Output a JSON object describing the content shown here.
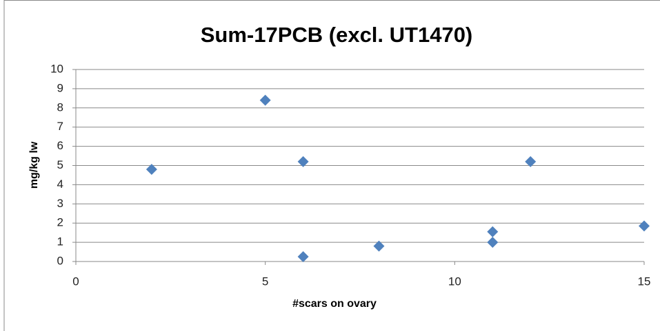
{
  "chart_data": {
    "type": "scatter",
    "title": "Sum-17PCB (excl. UT1470)",
    "xlabel": "#scars on ovary",
    "ylabel": "mg/kg lw",
    "x": [
      2,
      5,
      6,
      6,
      8,
      11,
      11,
      12,
      15
    ],
    "values": [
      4.8,
      8.4,
      5.2,
      0.25,
      0.8,
      1.55,
      1.0,
      5.2,
      1.85
    ],
    "color": "#4f81bd",
    "xlim": [
      0,
      15
    ],
    "xticks": [
      0,
      5,
      10,
      15
    ],
    "ylim": [
      0,
      10
    ],
    "yticks": [
      0,
      1,
      2,
      3,
      4,
      5,
      6,
      7,
      8,
      9,
      10
    ],
    "grid": true
  }
}
